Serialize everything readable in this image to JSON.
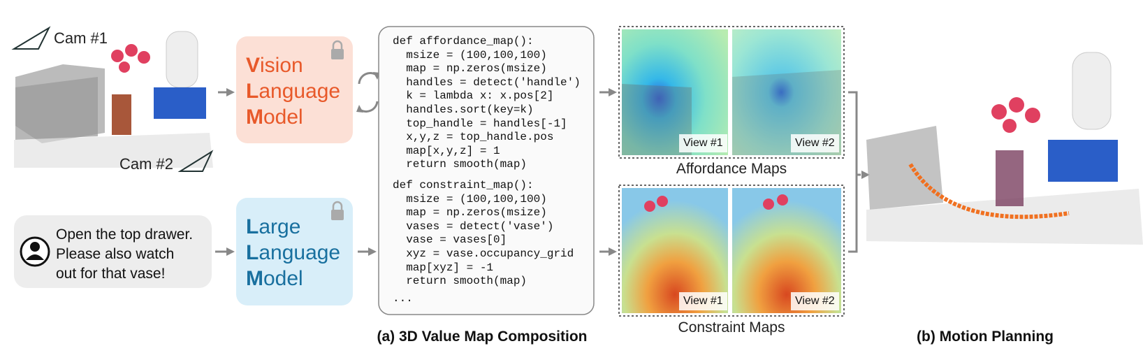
{
  "scene": {
    "cam1": "Cam #1",
    "cam2": "Cam #2"
  },
  "vlm": {
    "lines": [
      "Vision",
      "Language",
      "Model"
    ]
  },
  "llm": {
    "lines": [
      "Large",
      "Language",
      "Model"
    ]
  },
  "instruction": {
    "lines": [
      "Open the top drawer.",
      "Please also watch",
      "out for that vase!"
    ]
  },
  "code": {
    "affordance": [
      "def affordance_map():",
      "  msize = (100,100,100)",
      "  map = np.zeros(msize)",
      "  handles = detect('handle')",
      "  k = lambda x: x.pos[2]",
      "  handles.sort(key=k)",
      "  top_handle = handles[-1]",
      "  x,y,z = top_handle.pos",
      "  map[x,y,z] = 1",
      "  return smooth(map)"
    ],
    "constraint": [
      "def constraint_map():",
      "  msize = (100,100,100)",
      "  map = np.zeros(msize)",
      "  vases = detect('vase')",
      "  vase = vases[0]",
      "  xyz = vase.occupancy_grid",
      "  map[xyz] = -1",
      "  return smooth(map)"
    ],
    "ellipsis": "..."
  },
  "affordance_maps": {
    "views": [
      "View #1",
      "View #2"
    ],
    "label": "Affordance Maps"
  },
  "constraint_maps": {
    "views": [
      "View #1",
      "View #2"
    ],
    "label": "Constraint Maps"
  },
  "captions": {
    "composition": "(a) 3D Value Map Composition",
    "planning": "(b) Motion Planning"
  }
}
